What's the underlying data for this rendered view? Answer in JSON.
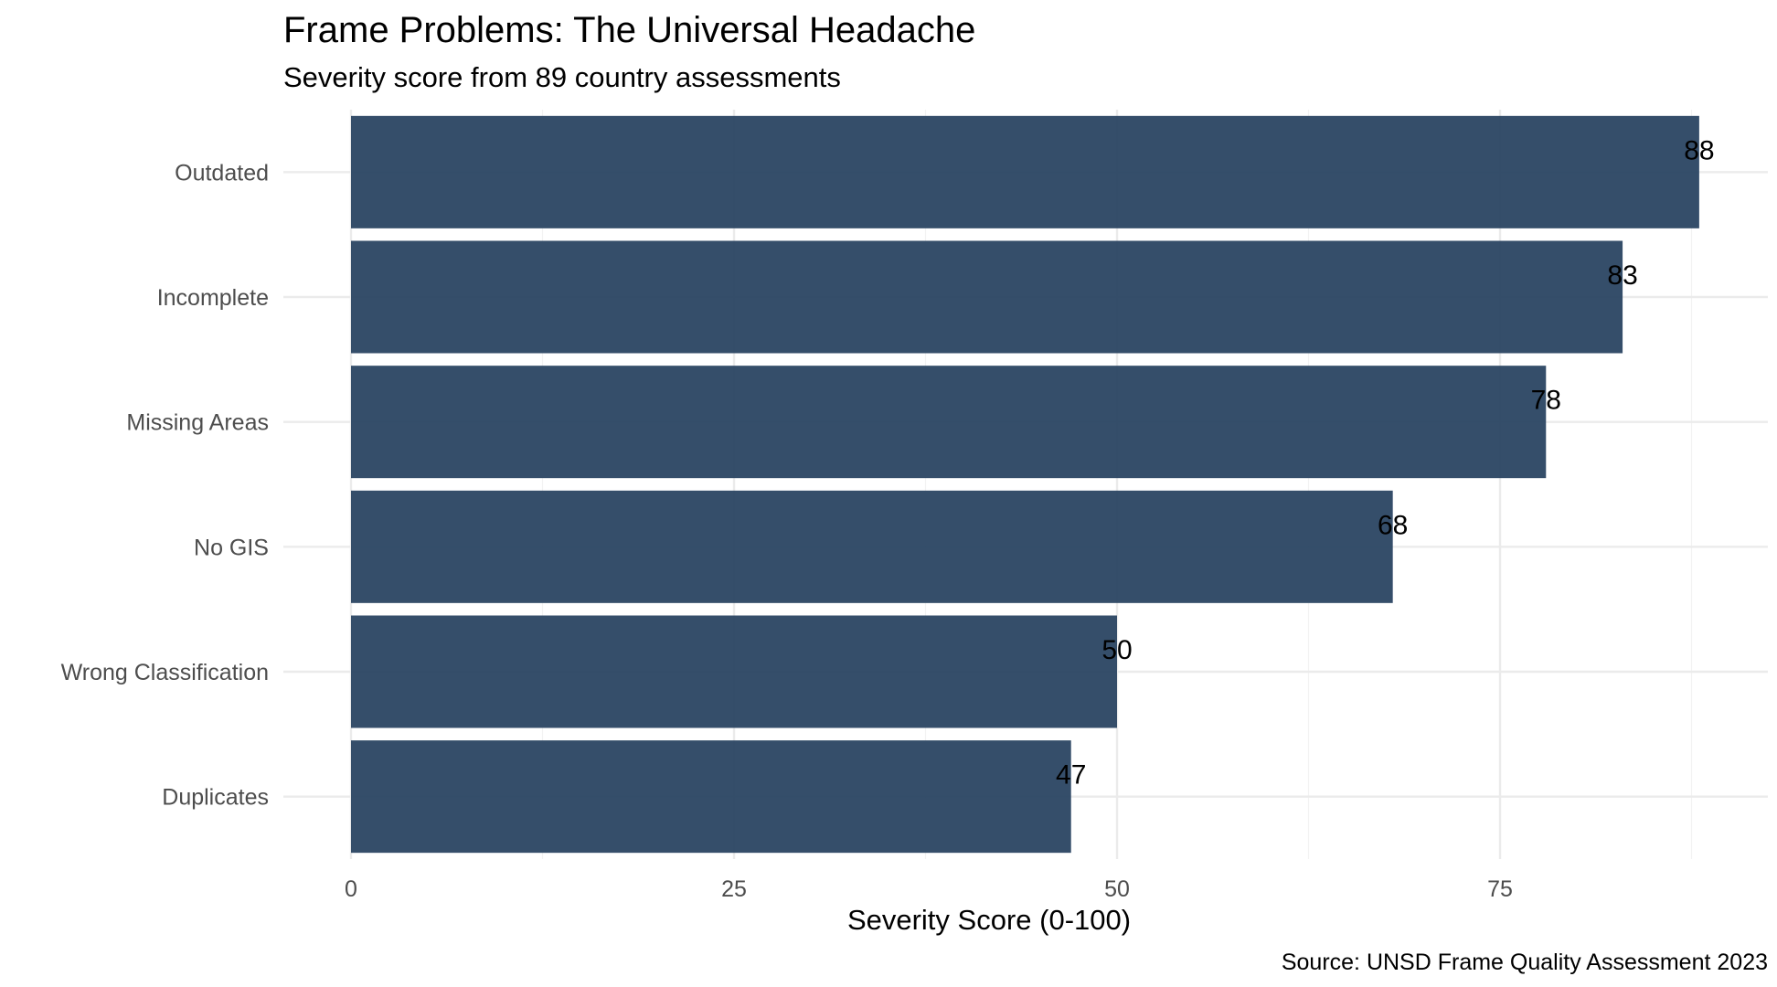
{
  "chart_data": {
    "type": "bar",
    "orientation": "horizontal",
    "title": "Frame Problems: The Universal Headache",
    "subtitle": "Severity score from 89 country assessments",
    "xlabel": "Severity Score (0-100)",
    "ylabel": "",
    "caption": "Source: UNSD Frame Quality Assessment 2023",
    "categories": [
      "Outdated",
      "Incomplete",
      "Missing Areas",
      "No GIS",
      "Wrong Classification",
      "Duplicates"
    ],
    "values": [
      88,
      83,
      78,
      68,
      50,
      47
    ],
    "data_labels": [
      "88",
      "83",
      "78",
      "68",
      "50",
      "47"
    ],
    "xlim": [
      0,
      92
    ],
    "x_ticks": [
      0,
      25,
      50,
      75
    ],
    "x_tick_labels": [
      "0",
      "25",
      "50",
      "75"
    ],
    "x_minor_ticks": [
      12.5,
      37.5,
      62.5,
      87.5
    ],
    "grid": true,
    "legend": "none",
    "bar_color": "#2a4562"
  }
}
